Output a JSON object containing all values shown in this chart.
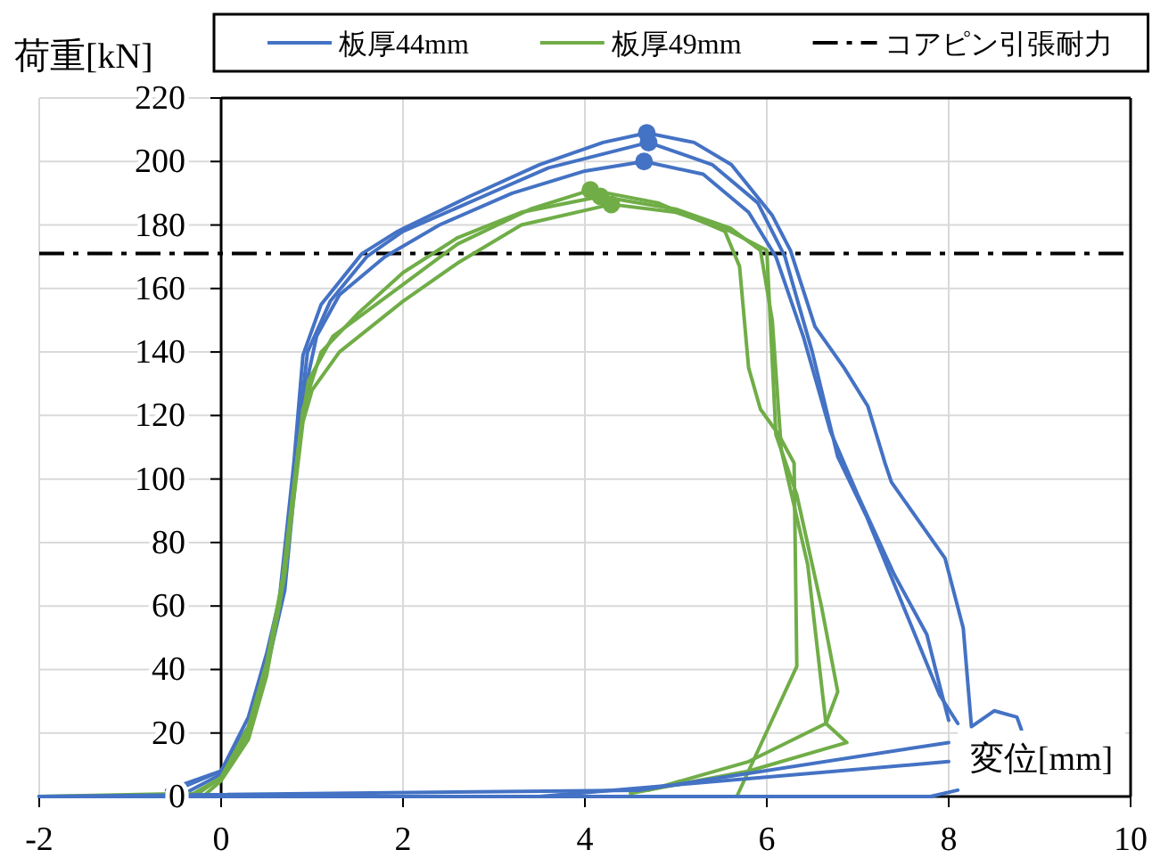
{
  "chart_data": {
    "type": "line",
    "xlabel": "変位[mm]",
    "ylabel": "荷重[kN]",
    "xlim": [
      -2,
      10
    ],
    "ylim": [
      0,
      220
    ],
    "xticks": [
      -2,
      0,
      2,
      4,
      6,
      8,
      10
    ],
    "yticks": [
      0,
      20,
      40,
      60,
      80,
      100,
      120,
      140,
      160,
      180,
      200,
      220
    ],
    "grid": true,
    "legend": "top",
    "line_style": "solid",
    "series": [
      {
        "name": "板厚44mm",
        "color": "#4472c4",
        "x": [
          -0.6,
          0,
          0.3,
          0.5,
          0.64,
          0.8,
          0.9,
          1.1,
          1.55,
          1.94,
          2.73,
          3.5,
          4.2,
          4.68,
          5.2,
          5.61,
          6.06,
          6.26,
          6.53,
          6.85,
          7.11,
          7.3,
          7.37,
          7.96,
          8.16,
          8.25,
          8.5,
          8.75,
          8.8
        ],
        "values": [
          2,
          8,
          25,
          45,
          62,
          105,
          139,
          155,
          171,
          178,
          189,
          199,
          206,
          209,
          206,
          199,
          183,
          172,
          148,
          135,
          123,
          105,
          99,
          75,
          53,
          22,
          27,
          25,
          21
        ]
      },
      {
        "color": "#4472c4",
        "x": [
          -0.5,
          0,
          0.3,
          0.5,
          0.65,
          0.85,
          0.95,
          1.2,
          1.6,
          2.0,
          2.8,
          3.6,
          4.7,
          5.4,
          5.9,
          6.2,
          6.5,
          6.78,
          7.1,
          7.5,
          7.9,
          8.1
        ],
        "values": [
          2,
          8,
          22,
          42,
          60,
          115,
          140,
          156,
          170,
          178,
          188,
          198,
          206,
          199,
          187,
          170,
          140,
          107,
          88,
          60,
          32,
          23
        ]
      },
      {
        "color": "#4472c4",
        "x": [
          -0.4,
          0,
          0.3,
          0.5,
          0.7,
          0.9,
          1.05,
          1.3,
          1.8,
          2.4,
          3.2,
          4.0,
          4.65,
          5.3,
          5.8,
          6.1,
          6.4,
          6.7,
          7.0,
          7.4,
          7.76,
          7.9,
          8.0
        ],
        "values": [
          1,
          7,
          20,
          40,
          65,
          125,
          145,
          158,
          170,
          180,
          190,
          197,
          200,
          196,
          184,
          170,
          145,
          115,
          95,
          70,
          51,
          35,
          24
        ]
      },
      {
        "name": "板厚49mm",
        "color": "#70ad47",
        "x": [
          -2,
          -0.3,
          0,
          0.3,
          0.5,
          0.64,
          0.85,
          0.96,
          1.23,
          1.94,
          2.6,
          3.4,
          4.06,
          4.8,
          5.54,
          5.7,
          5.8,
          5.93,
          6.13,
          6.3,
          6.33,
          5.67
        ],
        "values": [
          0,
          1,
          6,
          20,
          40,
          60,
          110,
          131,
          145,
          160,
          174,
          185,
          191,
          187,
          178,
          167,
          135,
          122,
          114,
          105,
          41,
          0
        ]
      },
      {
        "color": "#70ad47",
        "x": [
          -2,
          -0.3,
          0,
          0.3,
          0.5,
          0.7,
          0.9,
          1.1,
          1.5,
          2.0,
          2.6,
          3.3,
          4.17,
          5.0,
          5.6,
          5.93,
          6.06,
          6.16,
          6.45,
          6.65,
          6.88,
          5.8,
          4.5
        ],
        "values": [
          0,
          0,
          6,
          22,
          42,
          72,
          122,
          140,
          152,
          165,
          176,
          184,
          189,
          185,
          179,
          172,
          150,
          109,
          73,
          23,
          17,
          8,
          1
        ]
      },
      {
        "color": "#70ad47",
        "x": [
          -2,
          -0.2,
          0,
          0.3,
          0.5,
          0.7,
          0.9,
          1.0,
          1.3,
          2.0,
          2.6,
          3.3,
          4.29,
          5.0,
          5.6,
          6.0,
          6.1,
          6.33,
          6.6,
          6.78,
          6.65,
          5.8,
          4.7
        ],
        "values": [
          0,
          0,
          5,
          18,
          38,
          70,
          118,
          128,
          140,
          156,
          168,
          180,
          186.5,
          184,
          178,
          172,
          114,
          95,
          60,
          33,
          23,
          11,
          2
        ]
      },
      {
        "color": "#4472c4",
        "x": [
          -2,
          4.6,
          8.0
        ],
        "values": [
          0,
          2,
          17
        ]
      },
      {
        "color": "#4472c4",
        "x": [
          -2,
          3.5,
          8.0
        ],
        "values": [
          0,
          0,
          11
        ]
      },
      {
        "color": "#4472c4",
        "x": [
          -2,
          7.8,
          8.1
        ],
        "values": [
          0,
          0,
          2
        ]
      },
      {
        "type": "scatter",
        "color": "#4472c4",
        "x": [
          4.68,
          4.7,
          4.65
        ],
        "values": [
          209,
          206,
          200
        ]
      },
      {
        "type": "scatter",
        "color": "#70ad47",
        "x": [
          4.06,
          4.17,
          4.29
        ],
        "values": [
          191,
          189,
          186.5
        ]
      }
    ],
    "ref_lines": [
      {
        "axis": "y",
        "value": 171,
        "label": "コアピン引張耐力",
        "color": "#000000",
        "line_style": "dashdot"
      }
    ]
  }
}
